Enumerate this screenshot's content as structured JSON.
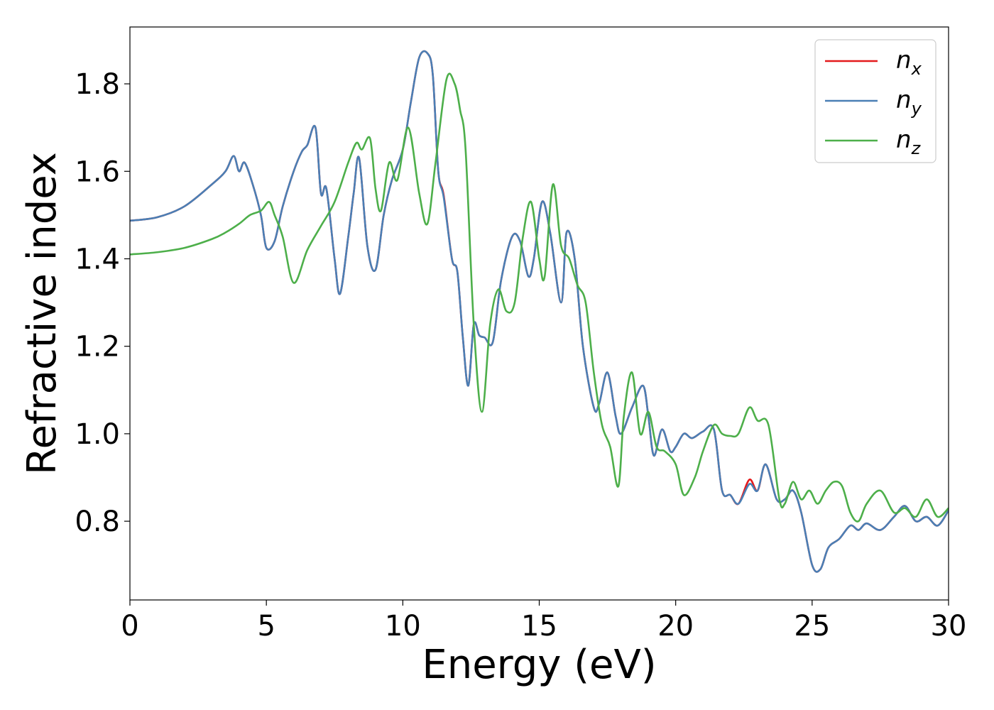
{
  "chart_data": {
    "type": "line",
    "title": "",
    "xlabel": "Energy (eV)",
    "ylabel": "Refractive index",
    "xlim": [
      0,
      30
    ],
    "ylim": [
      0.62,
      1.93
    ],
    "xticks": [
      0,
      5,
      10,
      15,
      20,
      25,
      30
    ],
    "xtick_labels": [
      "0",
      "5",
      "10",
      "15",
      "20",
      "25",
      "30"
    ],
    "yticks": [
      0.8,
      1.0,
      1.2,
      1.4,
      1.6,
      1.8
    ],
    "ytick_labels": [
      "0.8",
      "1.0",
      "1.2",
      "1.4",
      "1.6",
      "1.8"
    ],
    "grid": false,
    "legend_position": "top-right",
    "series": [
      {
        "name": "n_x",
        "label_base": "n",
        "label_sub": "x",
        "color": "#e41a1c",
        "x": [
          0,
          1,
          2,
          3,
          3.5,
          3.8,
          4.0,
          4.2,
          4.5,
          4.8,
          5.0,
          5.3,
          5.6,
          6.0,
          6.3,
          6.5,
          6.8,
          7.0,
          7.2,
          7.5,
          7.7,
          8.0,
          8.2,
          8.4,
          8.7,
          9.0,
          9.3,
          9.6,
          10.0,
          10.3,
          10.6,
          10.9,
          11.1,
          11.3,
          11.5,
          11.8,
          12.0,
          12.2,
          12.4,
          12.6,
          12.8,
          13.0,
          13.3,
          13.6,
          14.0,
          14.3,
          14.6,
          14.8,
          15.1,
          15.4,
          15.8,
          16.0,
          16.3,
          16.6,
          17.0,
          17.2,
          17.5,
          17.8,
          18.0,
          18.4,
          18.8,
          19.0,
          19.2,
          19.5,
          19.8,
          20.0,
          20.3,
          20.6,
          21.0,
          21.4,
          21.7,
          22.0,
          22.3,
          22.7,
          23.0,
          23.3,
          23.7,
          24.0,
          24.3,
          24.6,
          25.0,
          25.3,
          25.6,
          26.0,
          26.4,
          26.7,
          27.0,
          27.5,
          28.0,
          28.4,
          28.8,
          29.2,
          29.6,
          30.0
        ],
        "y": [
          1.487,
          1.495,
          1.52,
          1.57,
          1.6,
          1.635,
          1.6,
          1.62,
          1.57,
          1.5,
          1.425,
          1.44,
          1.52,
          1.6,
          1.645,
          1.66,
          1.7,
          1.55,
          1.56,
          1.4,
          1.32,
          1.45,
          1.55,
          1.63,
          1.43,
          1.375,
          1.5,
          1.58,
          1.65,
          1.76,
          1.86,
          1.87,
          1.82,
          1.6,
          1.545,
          1.4,
          1.37,
          1.22,
          1.11,
          1.25,
          1.225,
          1.22,
          1.21,
          1.35,
          1.45,
          1.44,
          1.36,
          1.4,
          1.53,
          1.46,
          1.3,
          1.46,
          1.4,
          1.2,
          1.06,
          1.07,
          1.14,
          1.04,
          1.0,
          1.06,
          1.11,
          1.04,
          0.95,
          1.01,
          0.96,
          0.97,
          1.0,
          0.99,
          1.005,
          1.01,
          0.87,
          0.86,
          0.84,
          0.895,
          0.87,
          0.93,
          0.85,
          0.85,
          0.87,
          0.82,
          0.7,
          0.69,
          0.74,
          0.76,
          0.79,
          0.78,
          0.795,
          0.78,
          0.81,
          0.835,
          0.8,
          0.81,
          0.79,
          0.825
        ]
      },
      {
        "name": "n_y",
        "label_base": "n",
        "label_sub": "y",
        "color": "#4a7fb5",
        "x": [
          0,
          1,
          2,
          3,
          3.5,
          3.8,
          4.0,
          4.2,
          4.5,
          4.8,
          5.0,
          5.3,
          5.6,
          6.0,
          6.3,
          6.5,
          6.8,
          7.0,
          7.2,
          7.5,
          7.7,
          8.0,
          8.2,
          8.4,
          8.7,
          9.0,
          9.3,
          9.6,
          10.0,
          10.3,
          10.6,
          10.9,
          11.1,
          11.3,
          11.5,
          11.8,
          12.0,
          12.2,
          12.4,
          12.6,
          12.8,
          13.0,
          13.3,
          13.6,
          14.0,
          14.3,
          14.6,
          14.8,
          15.1,
          15.4,
          15.8,
          16.0,
          16.3,
          16.6,
          17.0,
          17.2,
          17.5,
          17.8,
          18.0,
          18.4,
          18.8,
          19.0,
          19.2,
          19.5,
          19.8,
          20.0,
          20.3,
          20.6,
          21.0,
          21.4,
          21.7,
          22.0,
          22.3,
          22.7,
          23.0,
          23.3,
          23.7,
          24.0,
          24.3,
          24.6,
          25.0,
          25.3,
          25.6,
          26.0,
          26.4,
          26.7,
          27.0,
          27.5,
          28.0,
          28.4,
          28.8,
          29.2,
          29.6,
          30.0
        ],
        "y": [
          1.487,
          1.495,
          1.52,
          1.57,
          1.6,
          1.635,
          1.6,
          1.62,
          1.57,
          1.5,
          1.425,
          1.44,
          1.52,
          1.6,
          1.645,
          1.66,
          1.7,
          1.55,
          1.56,
          1.4,
          1.32,
          1.45,
          1.55,
          1.63,
          1.43,
          1.375,
          1.5,
          1.58,
          1.65,
          1.76,
          1.86,
          1.87,
          1.82,
          1.6,
          1.54,
          1.4,
          1.37,
          1.22,
          1.11,
          1.25,
          1.225,
          1.22,
          1.21,
          1.35,
          1.45,
          1.44,
          1.36,
          1.4,
          1.53,
          1.46,
          1.3,
          1.46,
          1.4,
          1.2,
          1.06,
          1.07,
          1.14,
          1.04,
          1.0,
          1.06,
          1.11,
          1.04,
          0.95,
          1.01,
          0.96,
          0.97,
          1.0,
          0.99,
          1.005,
          1.01,
          0.87,
          0.86,
          0.84,
          0.885,
          0.87,
          0.93,
          0.85,
          0.85,
          0.87,
          0.82,
          0.7,
          0.69,
          0.74,
          0.76,
          0.79,
          0.78,
          0.795,
          0.78,
          0.81,
          0.835,
          0.8,
          0.81,
          0.79,
          0.825
        ]
      },
      {
        "name": "n_z",
        "label_base": "n",
        "label_sub": "z",
        "color": "#4daf4a",
        "x": [
          0,
          1,
          2,
          3,
          3.5,
          4.0,
          4.4,
          4.8,
          5.1,
          5.3,
          5.6,
          6.0,
          6.5,
          7.0,
          7.5,
          8.0,
          8.3,
          8.5,
          8.8,
          9.0,
          9.2,
          9.5,
          9.8,
          10.2,
          10.6,
          10.9,
          11.2,
          11.6,
          11.9,
          12.1,
          12.3,
          12.6,
          12.9,
          13.2,
          13.5,
          13.8,
          14.1,
          14.4,
          14.7,
          15.0,
          15.2,
          15.5,
          15.8,
          16.1,
          16.4,
          16.7,
          17.0,
          17.3,
          17.6,
          17.9,
          18.1,
          18.4,
          18.7,
          19.0,
          19.3,
          19.6,
          20.0,
          20.3,
          20.7,
          21.0,
          21.4,
          21.7,
          22.0,
          22.3,
          22.7,
          23.0,
          23.4,
          23.8,
          24.0,
          24.3,
          24.6,
          24.9,
          25.2,
          25.5,
          25.8,
          26.1,
          26.4,
          26.7,
          27.0,
          27.5,
          28.0,
          28.4,
          28.8,
          29.2,
          29.6,
          30.0
        ],
        "y": [
          1.41,
          1.415,
          1.425,
          1.445,
          1.46,
          1.48,
          1.5,
          1.51,
          1.53,
          1.5,
          1.45,
          1.345,
          1.42,
          1.475,
          1.53,
          1.62,
          1.665,
          1.65,
          1.675,
          1.56,
          1.51,
          1.62,
          1.58,
          1.7,
          1.55,
          1.48,
          1.62,
          1.81,
          1.8,
          1.74,
          1.65,
          1.25,
          1.05,
          1.25,
          1.33,
          1.28,
          1.3,
          1.45,
          1.53,
          1.4,
          1.36,
          1.57,
          1.43,
          1.4,
          1.34,
          1.3,
          1.14,
          1.02,
          0.97,
          0.88,
          1.04,
          1.14,
          1.0,
          1.05,
          0.97,
          0.96,
          0.93,
          0.86,
          0.9,
          0.96,
          1.02,
          1.0,
          0.995,
          1.0,
          1.06,
          1.03,
          1.02,
          0.85,
          0.84,
          0.89,
          0.85,
          0.87,
          0.84,
          0.87,
          0.89,
          0.88,
          0.82,
          0.8,
          0.84,
          0.87,
          0.82,
          0.83,
          0.81,
          0.85,
          0.81,
          0.83
        ]
      }
    ]
  }
}
